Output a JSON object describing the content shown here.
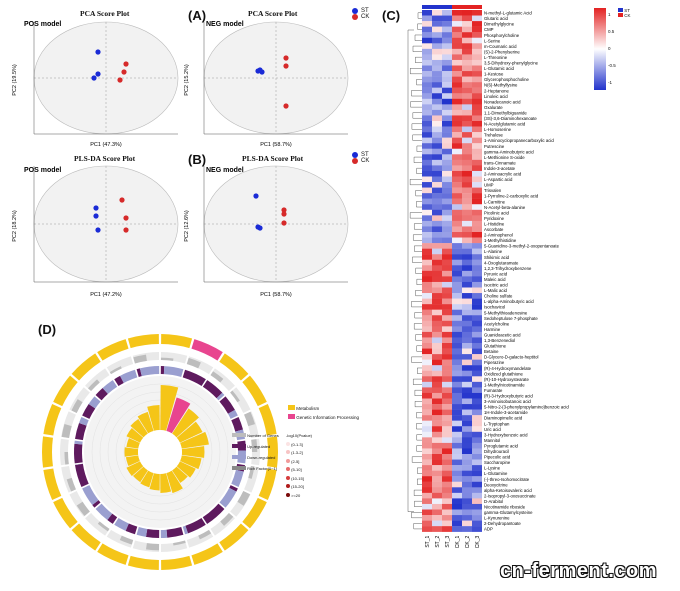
{
  "panels": {
    "A": "(A)",
    "B": "(B)",
    "C": "(C)",
    "D": "(D)"
  },
  "pca": {
    "title": "PCA Score Plot",
    "pos_model": "POS model",
    "neg_model": "NEG model",
    "pos_xlabel": "PC1 (47.3%)",
    "pos_ylabel": "PC2 (19.5%)",
    "neg_xlabel": "PC1 (58.7%)",
    "neg_ylabel": "PC2 (15.2%)"
  },
  "plsda": {
    "title": "PLS-DA Score Plot",
    "pos_model": "POS model",
    "neg_model": "NEG model",
    "pos_xlabel": "PC1 (47.2%)",
    "pos_ylabel": "PC2 (18.2%)",
    "neg_xlabel": "PC1 (58.7%)",
    "neg_ylabel": "PC2 (12.6%)"
  },
  "groups": {
    "st": "ST",
    "ck": "CK"
  },
  "colors": {
    "st": "#1a2bd6",
    "ck": "#d62a2a",
    "heat_low": "#2233cc",
    "heat_high": "#e32222"
  },
  "heatmap": {
    "columns": [
      "ST_1",
      "ST_2",
      "ST_3",
      "CK_1",
      "CK_2",
      "CK_3"
    ],
    "scale": [
      "1",
      "0.5",
      "0",
      "-0.5",
      "-1"
    ],
    "rows": [
      "N-methyl-L-glutamic Acid",
      "Glutaric acid",
      "Dimethylglycine",
      "CMP",
      "Phosphorylcholine",
      "L-Serine",
      "m-Coumaric acid",
      "(S)-2-Phenylserine",
      "L-Threonine",
      "3,5-Dihydroxy-phenylglycine",
      "L-Glutamic acid",
      "1-Kestose",
      "Glycerophosphocholine",
      "N(6)-Methyllysine",
      "2-Heptanone",
      "Linoleic acid",
      "Nonadecanoic acid",
      "Oxalurate",
      "1,1-Dimethylbiguanide",
      "(3S)-3,6-Diaminohexanoate",
      "N-Acetylglutamic acid",
      "L-Homoserine",
      "Trehalose",
      "1-Aminocyclopropanecarboxylic acid",
      "Putrescine",
      "gamma-Aminobutyric acid",
      "L-Methionine S-oxide",
      "trans-Cinnamate",
      "Indole-3-acetate",
      "2-Aminoacrylic acid",
      "L-Aspartic acid",
      "UMP",
      "Trisvalen",
      "1-Pyrroline-2-carboxylic acid",
      "L-Carnitine",
      "N-Acetyl-beta-alanine",
      "Picolinic acid",
      "Pyridoxine",
      "L-Histidine",
      "Ascorbate",
      "2-Aminophenol",
      "1-Methylhistidine",
      "5-Guanidino-3-methyl-2-oxopentanoate",
      "L-Alanine",
      "Shikimic acid",
      "4-Oxoglutaramate",
      "1,2,3-Trihydroxybenzene",
      "Pyruvic acid",
      "Maleic acid",
      "Isocitric acid",
      "L-Malic acid",
      "Choline sulfate",
      "L-alpha-Aminobutyric acid",
      "Isochavicol",
      "5-Methylthioadenosine",
      "Sedoheptulose 7-phosphate",
      "Acetylcholine",
      "Harmine",
      "Guanidoacetic acid",
      "1,3-Benzenediol",
      "Glutathione",
      "Betaine",
      "D-Glycero-D-galacto-heptitol",
      "Piperazine",
      "(R)-4-Hydroxymandelate",
      "Oxidized glutathione",
      "(R)-10-Hydroxystearate",
      "1-Methylnicotinamide",
      "Fumarate",
      "(R)-3-Hydroxybutyric acid",
      "3-Aminoisobutanoic acid",
      "5-Nitro-2-(3-phenylpropylamino)benzoic acid",
      "1H-Indole-3-acetamide",
      "Diaminopimelic acid",
      "L-Tryptophan",
      "Uric acid",
      "3-Hydroxybenzoic acid",
      "Mannitol",
      "Pyroglutamic acid",
      "Dihydrouracil",
      "Pipecolic acid",
      "Saccharopine",
      "L-Lysine",
      "L-Glutamine",
      "(-)-threo-Isohomocitrate",
      "Deoxycitrine",
      "alpha-Ketoisovaleric acid",
      "2-Isopropyl-3-oxosuccinate",
      "D-Arabitol",
      "Nicotinamide riboside",
      "gamma-Glutamylcysteine",
      "L-Kynurenine",
      "2-Dehydropantoate",
      "ADP"
    ]
  },
  "circos": {
    "legend_top": [
      "Metabolism",
      "Genetic Information Processing"
    ],
    "legend_mid": [
      "Number of Genes",
      "Up-regulated",
      "Down-regulated",
      "Rich Factor(0~1)"
    ],
    "pval_title": "-log10(Pvalue)",
    "pval_bins": [
      "(0-1.3]",
      "(1.3-2]",
      "(2-5]",
      "(5-10]",
      "(10-15]",
      "(15-20]",
      ">=20"
    ]
  },
  "watermark": "cn-ferment.com"
}
